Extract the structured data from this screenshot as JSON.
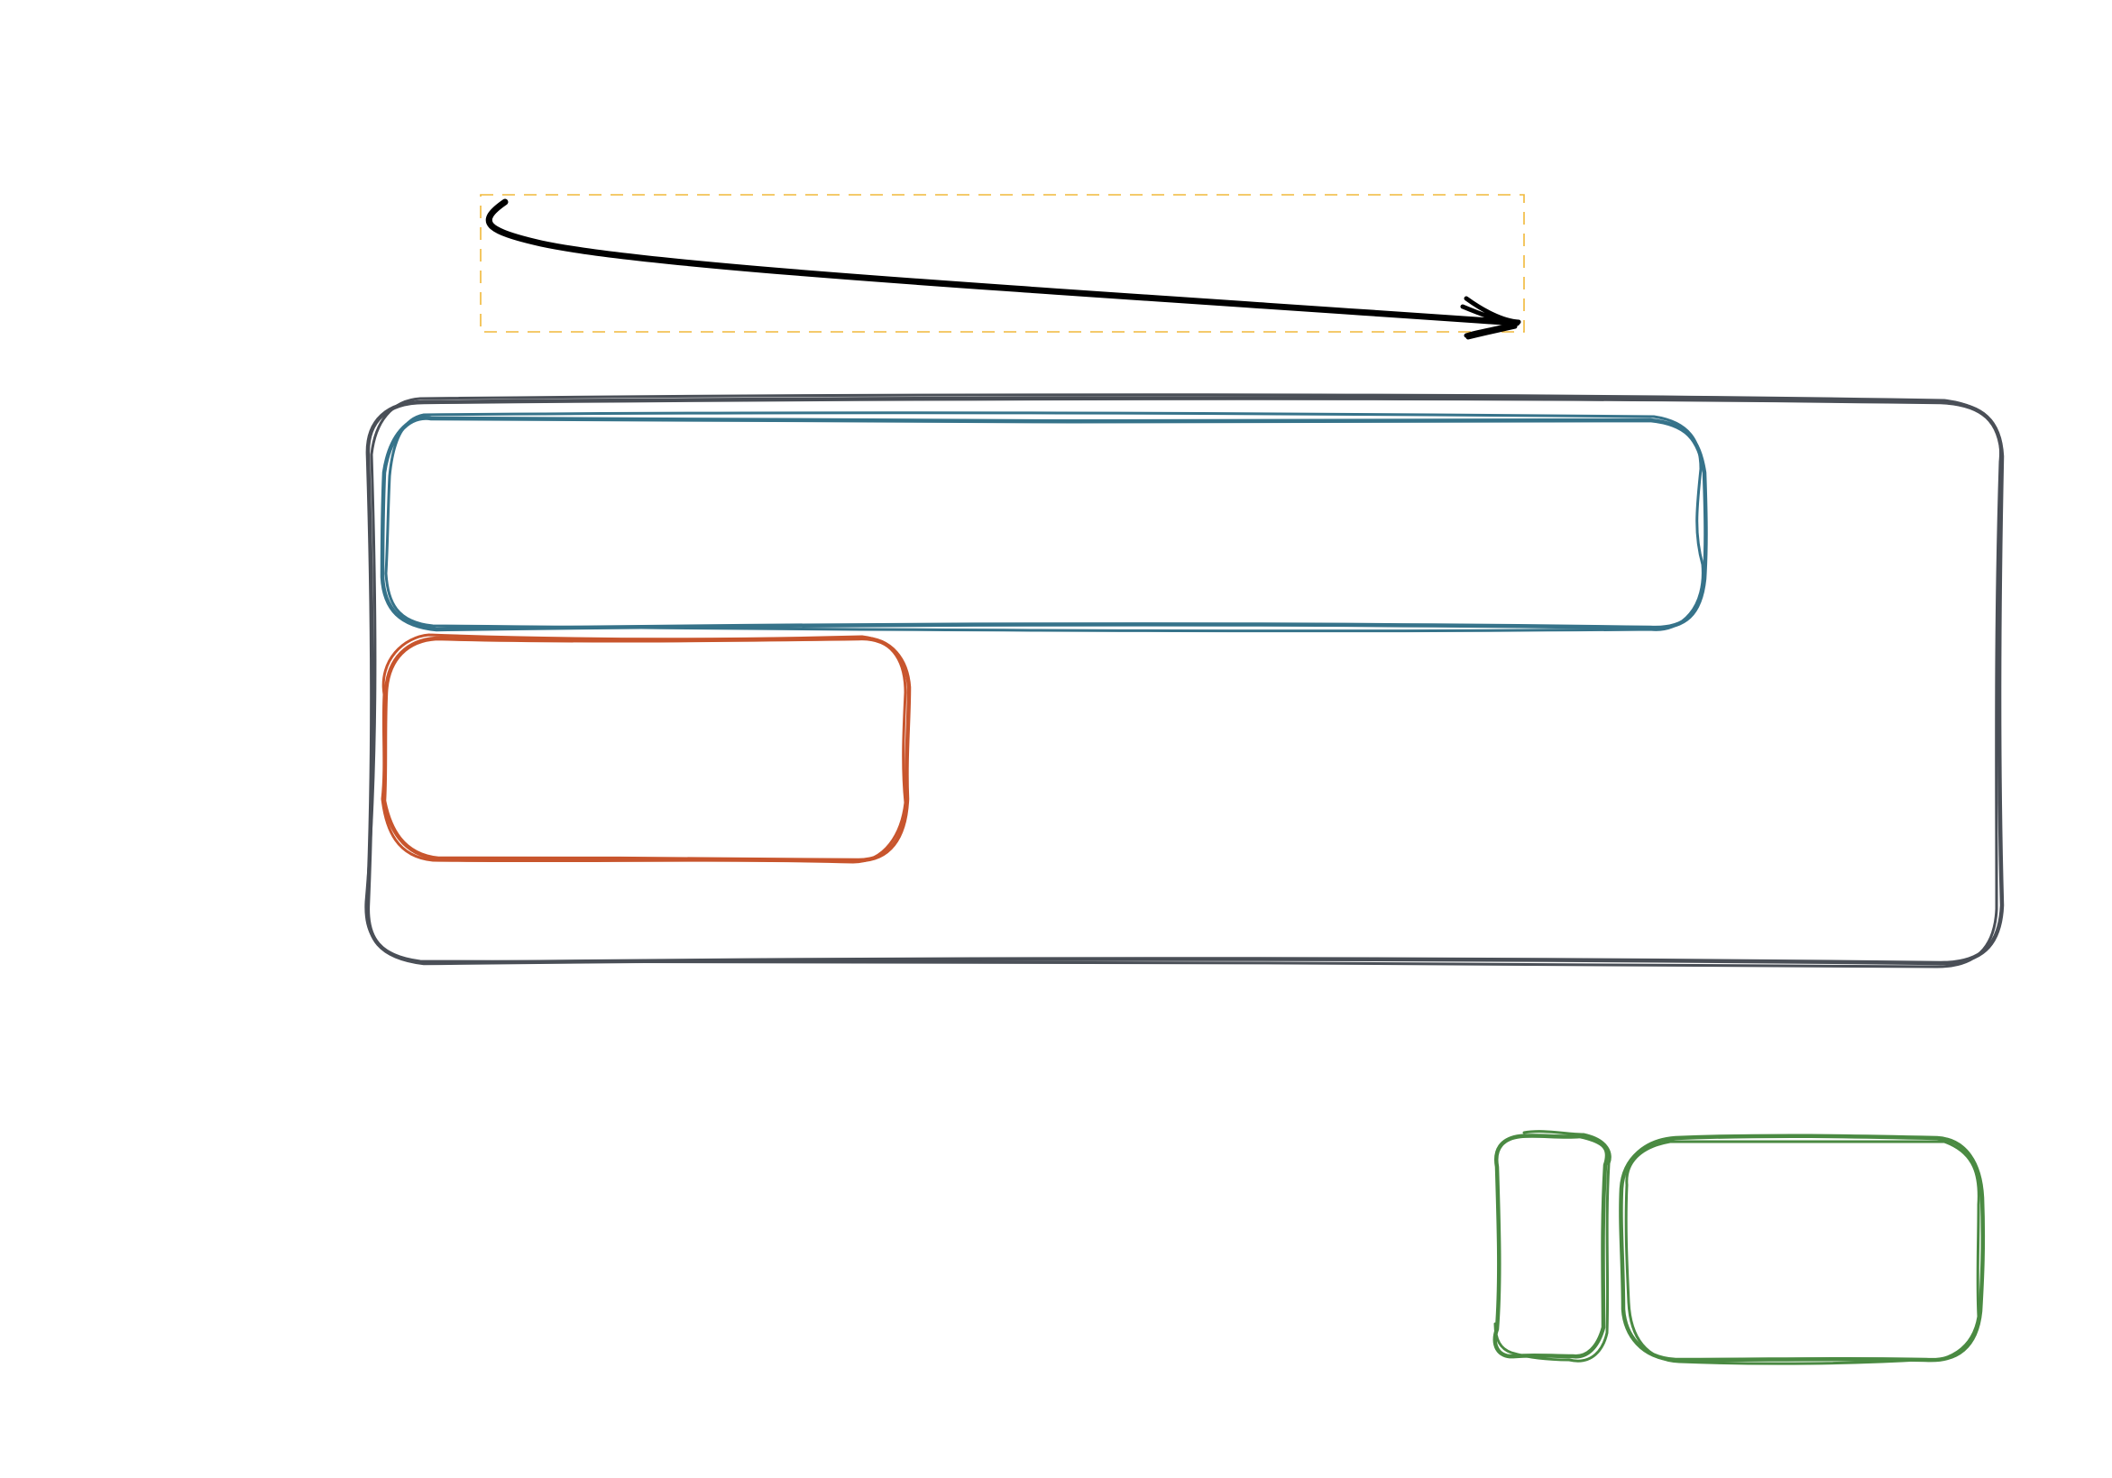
{
  "diagram": {
    "background": "#ffffff",
    "colors": {
      "container": "#4a4f57",
      "top_box": "#36738a",
      "left_box": "#c8552d",
      "small_boxes": "#4a8a42",
      "arrow": "#000000",
      "selection": "#f0b83a"
    },
    "elements": [
      {
        "id": "selection-frame",
        "kind": "dashed-selection",
        "color_key": "selection"
      },
      {
        "id": "arrow",
        "kind": "arrow",
        "color_key": "arrow",
        "selected": true
      },
      {
        "id": "container-box",
        "kind": "rounded-rectangle",
        "color_key": "container",
        "label": ""
      },
      {
        "id": "top-box",
        "kind": "rounded-rectangle",
        "color_key": "top_box",
        "label": ""
      },
      {
        "id": "left-box",
        "kind": "rounded-rectangle",
        "color_key": "left_box",
        "label": ""
      },
      {
        "id": "small-narrow-box",
        "kind": "rounded-rectangle",
        "color_key": "small_boxes",
        "label": ""
      },
      {
        "id": "small-wide-box",
        "kind": "rounded-rectangle",
        "color_key": "small_boxes",
        "label": ""
      }
    ]
  }
}
